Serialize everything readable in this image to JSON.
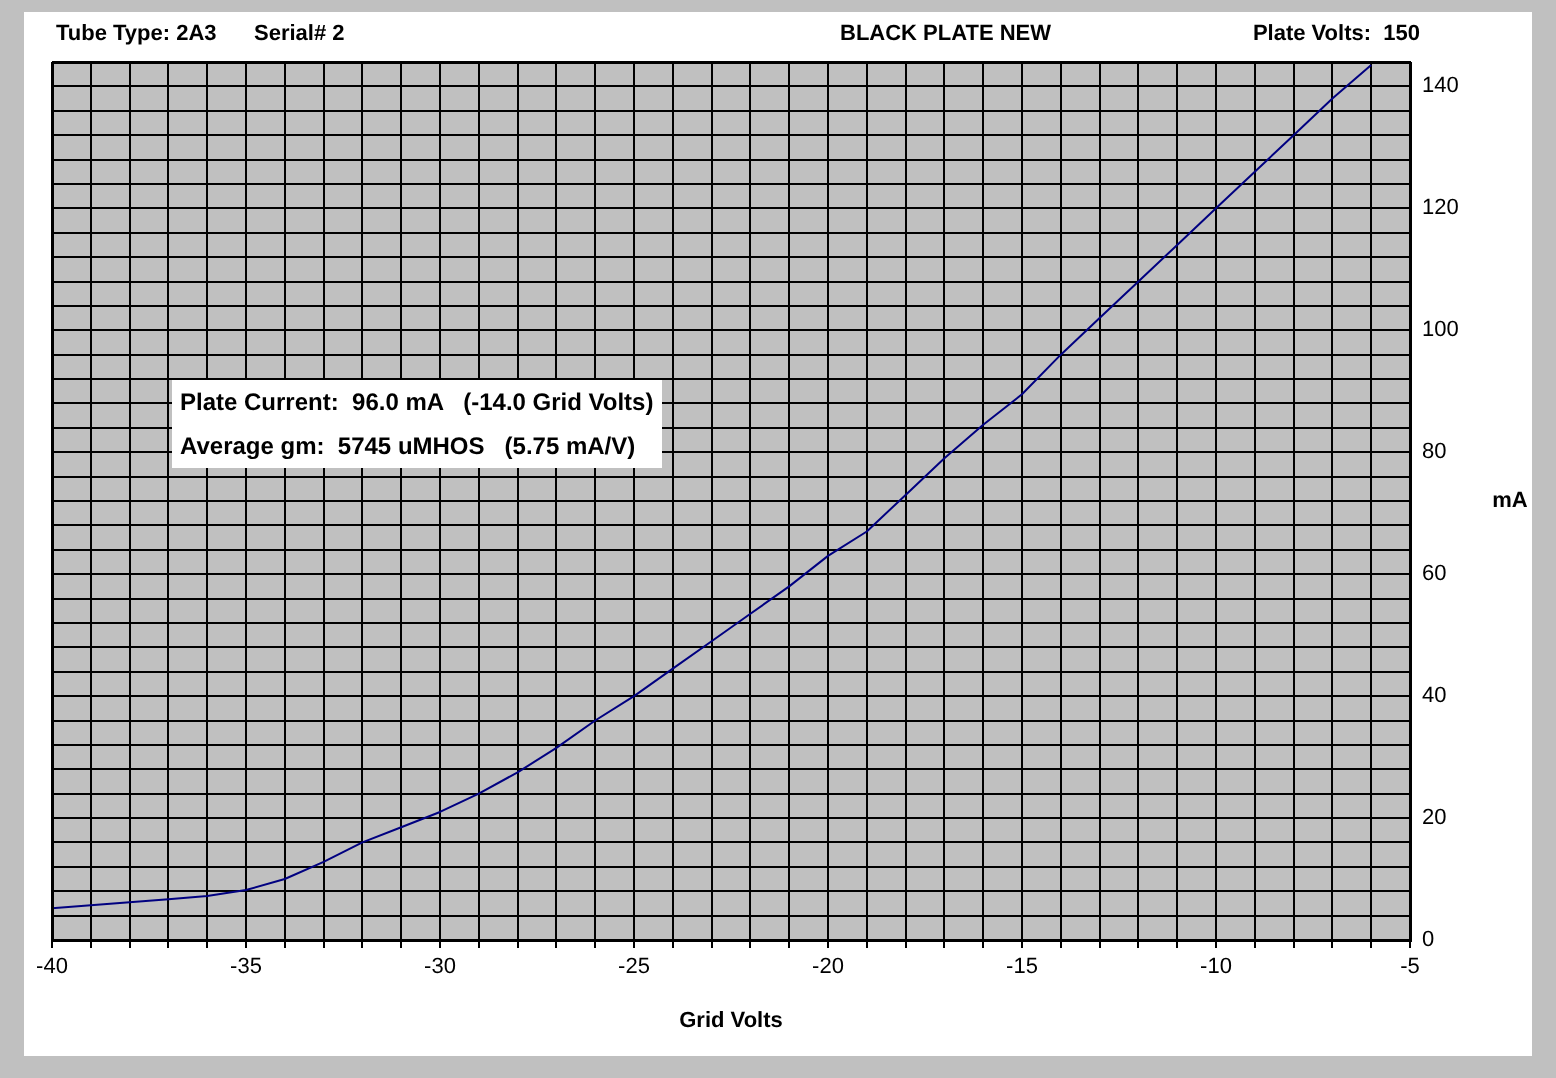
{
  "chart_data": {
    "type": "line",
    "title": "BLACK PLATE NEW",
    "xlabel": "Grid Volts",
    "ylabel": "mA",
    "annotations": [
      "Tube Type: 2A3",
      "Serial# 2",
      "Plate Volts:  150",
      "Plate Current:  96.0 mA   (-14.0 Grid Volts)",
      "Average gm:  5745 uMHOS   (5.75 mA/V)"
    ],
    "x": [
      -40,
      -39,
      -38,
      -37,
      -36,
      -35,
      -34,
      -33,
      -32,
      -31,
      -30,
      -29,
      -28,
      -27,
      -26,
      -25,
      -24,
      -23,
      -22,
      -21,
      -20,
      -19,
      -18,
      -17,
      -16,
      -15,
      -14,
      -13,
      -12,
      -11,
      -10,
      -9,
      -8,
      -7,
      -6
    ],
    "series": [
      {
        "color": "#000080",
        "values": [
          5.2,
          5.7,
          6.2,
          6.7,
          7.2,
          8.2,
          10,
          12.8,
          16,
          18.5,
          21,
          24,
          27.5,
          31.5,
          36,
          40,
          44.5,
          49,
          53.5,
          58,
          63,
          67,
          73,
          79,
          84.5,
          89.5,
          96,
          102,
          108,
          114,
          120,
          126,
          132,
          138,
          143.5
        ]
      }
    ],
    "xlim": [
      -40,
      -5
    ],
    "xticks": [
      -40,
      {
        "value": -39,
        "label": null
      },
      {
        "value": -38,
        "label": null
      },
      {
        "value": -37,
        "label": null
      },
      {
        "value": -36,
        "label": null
      },
      -35,
      {
        "value": -34,
        "label": null
      },
      {
        "value": -33,
        "label": null
      },
      {
        "value": -32,
        "label": null
      },
      {
        "value": -31,
        "label": null
      },
      -30,
      {
        "value": -29,
        "label": null
      },
      {
        "value": -28,
        "label": null
      },
      {
        "value": -27,
        "label": null
      },
      {
        "value": -26,
        "label": null
      },
      -25,
      {
        "value": -24,
        "label": null
      },
      {
        "value": -23,
        "label": null
      },
      {
        "value": -22,
        "label": null
      },
      {
        "value": -21,
        "label": null
      },
      -20,
      {
        "value": -19,
        "label": null
      },
      {
        "value": -18,
        "label": null
      },
      {
        "value": -17,
        "label": null
      },
      {
        "value": -16,
        "label": null
      },
      -15,
      {
        "value": -14,
        "label": null
      },
      {
        "value": -13,
        "label": null
      },
      {
        "value": -12,
        "label": null
      },
      {
        "value": -11,
        "label": null
      },
      -10,
      {
        "value": -9,
        "label": null
      },
      {
        "value": -8,
        "label": null
      },
      {
        "value": -7,
        "label": null
      },
      {
        "value": -6,
        "label": null
      },
      -5
    ],
    "ylim": [
      0,
      144
    ],
    "yticks": [
      0,
      {
        "value": 4,
        "label": null
      },
      {
        "value": 8,
        "label": null
      },
      {
        "value": 12,
        "label": null
      },
      {
        "value": 16,
        "label": null
      },
      20,
      {
        "value": 24,
        "label": null
      },
      {
        "value": 28,
        "label": null
      },
      {
        "value": 32,
        "label": null
      },
      {
        "value": 36,
        "label": null
      },
      40,
      {
        "value": 44,
        "label": null
      },
      {
        "value": 48,
        "label": null
      },
      {
        "value": 52,
        "label": null
      },
      {
        "value": 56,
        "label": null
      },
      60,
      {
        "value": 64,
        "label": null
      },
      {
        "value": 68,
        "label": null
      },
      {
        "value": 72,
        "label": null
      },
      {
        "value": 76,
        "label": null
      },
      80,
      {
        "value": 84,
        "label": null
      },
      {
        "value": 88,
        "label": null
      },
      {
        "value": 92,
        "label": null
      },
      {
        "value": 96,
        "label": null
      },
      100,
      {
        "value": 104,
        "label": null
      },
      {
        "value": 108,
        "label": null
      },
      {
        "value": 112,
        "label": null
      },
      {
        "value": 116,
        "label": null
      },
      120,
      {
        "value": 124,
        "label": null
      },
      {
        "value": 128,
        "label": null
      },
      {
        "value": 132,
        "label": null
      },
      {
        "value": 136,
        "label": null
      },
      140,
      {
        "value": 144,
        "label": null
      }
    ],
    "grid": true,
    "legend": false,
    "marker": "none",
    "line_style": "solid"
  }
}
